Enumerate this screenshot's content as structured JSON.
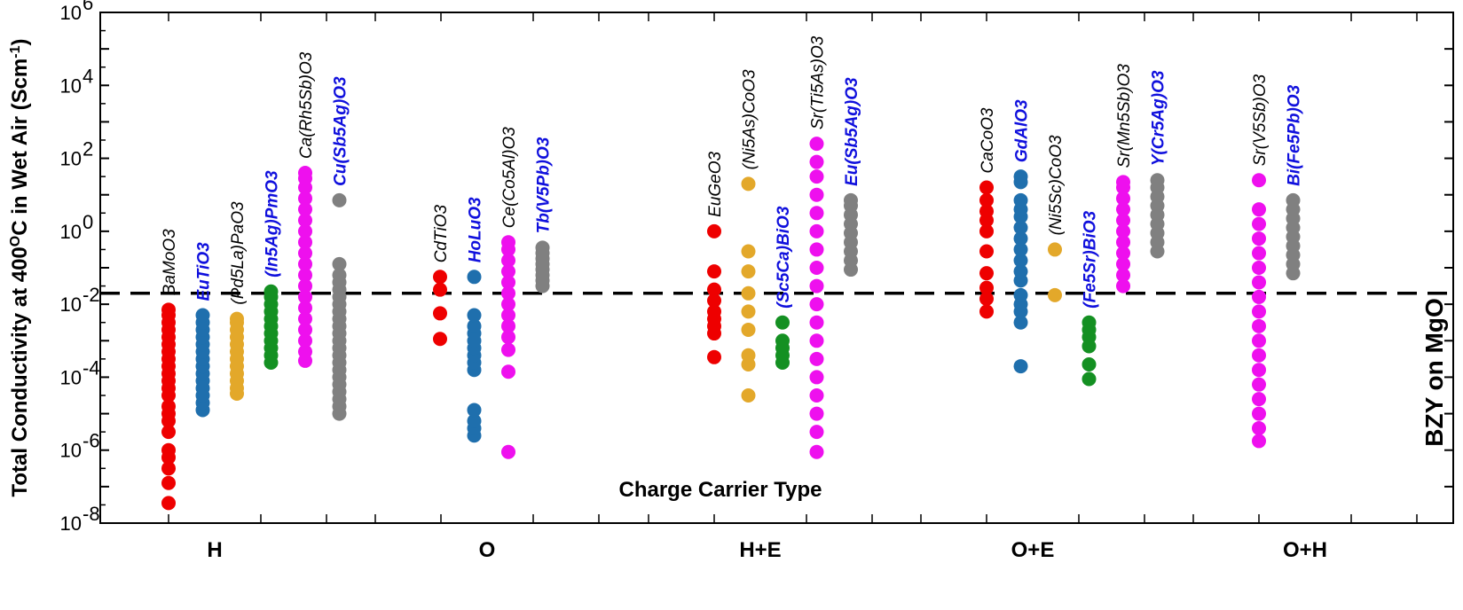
{
  "chart_data": {
    "type": "scatter",
    "xlabel": "Charge Carrier Type",
    "ylabel": "Total Conductivity at 400°C in Wet Air (Scm⁻¹)",
    "ylabel_parts": {
      "main": "Total Conductivity at 400",
      "sup": "O",
      "mid": "C in Wet Air (Scm",
      "sup2": "-1",
      "end": ")"
    },
    "yscale": "log",
    "ylim_exp": [
      -8,
      6
    ],
    "y_tick_exponents": [
      -8,
      -6,
      -4,
      -2,
      0,
      2,
      4,
      6
    ],
    "categories": [
      "H",
      "O",
      "H+E",
      "O+E",
      "O+H"
    ],
    "reference_line": {
      "value": 0.02,
      "style": "dashed",
      "label": "BZY on MgO"
    },
    "colors": {
      "red": "#ee0000",
      "blue": "#1f6fad",
      "gold": "#e3a82a",
      "green": "#149022",
      "magenta": "#ee10ee",
      "gray": "#808080",
      "label_black": "#000000",
      "label_blue": "#1010dd"
    },
    "series": [
      {
        "name": "BaMoO3",
        "category": "H",
        "slot": 0,
        "color": "red",
        "label_color": "label_black",
        "log_values": [
          -7.45,
          -6.9,
          -6.5,
          -6.2,
          -6.0,
          -5.5,
          -5.2,
          -5.0,
          -4.8,
          -4.5,
          -4.3,
          -4.1,
          -3.9,
          -3.7,
          -3.5,
          -3.3,
          -3.1,
          -2.9,
          -2.7,
          -2.5,
          -2.3,
          -2.15
        ]
      },
      {
        "name": "EuTiO3",
        "category": "H",
        "slot": 1,
        "color": "blue",
        "label_color": "label_blue",
        "log_values": [
          -4.9,
          -4.7,
          -4.5,
          -4.3,
          -4.1,
          -3.9,
          -3.7,
          -3.5,
          -3.3,
          -3.1,
          -2.9,
          -2.7,
          -2.5,
          -2.3
        ]
      },
      {
        "name": "(Pd5La)PaO3",
        "category": "H",
        "slot": 2,
        "color": "gold",
        "label_color": "label_black",
        "log_values": [
          -4.45,
          -4.3,
          -4.1,
          -3.9,
          -3.7,
          -3.5,
          -3.3,
          -3.1,
          -2.9,
          -2.7,
          -2.5,
          -2.4
        ]
      },
      {
        "name": "(In5Ag)PmO3",
        "category": "H",
        "slot": 3,
        "color": "green",
        "label_color": "label_blue",
        "log_values": [
          -3.6,
          -3.4,
          -3.2,
          -3.0,
          -2.8,
          -2.6,
          -2.4,
          -2.2,
          -2.0,
          -1.8,
          -1.65
        ]
      },
      {
        "name": "Ca(Rh5Sb)O3",
        "category": "H",
        "slot": 4,
        "color": "magenta",
        "label_color": "label_black",
        "log_values": [
          -3.55,
          -3.3,
          -3.0,
          -2.7,
          -2.4,
          -2.1,
          -1.8,
          -1.5,
          -1.2,
          -0.9,
          -0.6,
          -0.3,
          0.0,
          0.3,
          0.6,
          0.9,
          1.2,
          1.45,
          1.6
        ]
      },
      {
        "name": "Cu(Sb5Ag)O3",
        "category": "H",
        "slot": 5,
        "color": "gray",
        "label_color": "label_blue",
        "log_values": [
          -5.0,
          -4.8,
          -4.6,
          -4.4,
          -4.2,
          -4.0,
          -3.8,
          -3.6,
          -3.4,
          -3.2,
          -3.0,
          -2.8,
          -2.6,
          -2.4,
          -2.2,
          -2.0,
          -1.8,
          -1.6,
          -1.4,
          -1.2,
          -0.9,
          0.85
        ]
      },
      {
        "name": "CdTiO3",
        "category": "O",
        "slot": 0,
        "color": "red",
        "label_color": "label_black",
        "log_values": [
          -2.95,
          -2.25,
          -1.6,
          -1.25
        ]
      },
      {
        "name": "HoLuO3",
        "category": "O",
        "slot": 1,
        "color": "blue",
        "label_color": "label_blue",
        "log_values": [
          -5.6,
          -5.4,
          -5.2,
          -4.9,
          -3.8,
          -3.6,
          -3.4,
          -3.2,
          -3.0,
          -2.8,
          -2.6,
          -2.3,
          -1.25
        ]
      },
      {
        "name": "Ce(Co5Al)O3",
        "category": "O",
        "slot": 2,
        "color": "magenta",
        "label_color": "label_black",
        "log_values": [
          -6.05,
          -3.85,
          -3.25,
          -2.9,
          -2.6,
          -2.3,
          -2.0,
          -1.7,
          -1.4,
          -1.1,
          -0.8,
          -0.5,
          -0.3
        ]
      },
      {
        "name": "Tb(V5Pb)O3",
        "category": "O",
        "slot": 3,
        "color": "gray",
        "label_color": "label_blue",
        "log_values": [
          -1.5,
          -1.35,
          -1.2,
          -1.05,
          -0.9,
          -0.75,
          -0.6,
          -0.45
        ]
      },
      {
        "name": "EuGeO3",
        "category": "H+E",
        "slot": 0,
        "color": "red",
        "label_color": "label_black",
        "log_values": [
          -3.45,
          -2.8,
          -2.6,
          -2.4,
          -2.2,
          -1.9,
          -1.6,
          -1.1,
          0.0
        ]
      },
      {
        "name": "(Ni5As)CoO3",
        "category": "H+E",
        "slot": 1,
        "color": "gold",
        "label_color": "label_black",
        "log_values": [
          -4.5,
          -3.65,
          -3.4,
          -2.7,
          -2.2,
          -1.7,
          -1.1,
          -0.55,
          1.3
        ]
      },
      {
        "name": "(Sc5Ca)BiO3",
        "category": "H+E",
        "slot": 2,
        "color": "green",
        "label_color": "label_blue",
        "log_values": [
          -3.6,
          -3.4,
          -3.2,
          -3.0,
          -2.5
        ]
      },
      {
        "name": "Sr(Ti5As)O3",
        "category": "H+E",
        "slot": 3,
        "color": "magenta",
        "label_color": "label_black",
        "log_values": [
          -6.05,
          -5.5,
          -5.0,
          -4.5,
          -4.0,
          -3.5,
          -3.0,
          -2.5,
          -2.0,
          -1.5,
          -1.0,
          -0.5,
          0.0,
          0.5,
          1.0,
          1.5,
          1.9,
          2.4
        ]
      },
      {
        "name": "Eu(Sb5Ag)O3",
        "category": "H+E",
        "slot": 4,
        "color": "gray",
        "label_color": "label_blue",
        "log_values": [
          -1.05,
          -0.8,
          -0.55,
          -0.3,
          -0.05,
          0.2,
          0.45,
          0.7,
          0.85
        ]
      },
      {
        "name": "CaCoO3",
        "category": "O+E",
        "slot": 0,
        "color": "red",
        "label_color": "label_black",
        "log_values": [
          -2.2,
          -1.85,
          -1.55,
          -1.15,
          -0.55,
          0.0,
          0.3,
          0.55,
          0.85,
          1.2
        ]
      },
      {
        "name": "GdAlO3",
        "category": "O+E",
        "slot": 1,
        "color": "blue",
        "label_color": "label_blue",
        "log_values": [
          -3.7,
          -2.5,
          -2.2,
          -2.0,
          -1.75,
          -1.35,
          -1.1,
          -0.8,
          -0.5,
          -0.2,
          0.1,
          0.4,
          0.6,
          0.85,
          1.35,
          1.5
        ]
      },
      {
        "name": "(Ni5Sc)CoO3",
        "category": "O+E",
        "slot": 2,
        "color": "gold",
        "label_color": "label_black",
        "log_values": [
          -1.75,
          -0.5
        ]
      },
      {
        "name": "(Fe5Sr)BiO3",
        "category": "O+E",
        "slot": 3,
        "color": "green",
        "label_color": "label_blue",
        "log_values": [
          -4.05,
          -3.65,
          -3.15,
          -2.9,
          -2.7,
          -2.5
        ]
      },
      {
        "name": "Sr(Mn5Sb)O3",
        "category": "O+E",
        "slot": 4,
        "color": "magenta",
        "label_color": "label_black",
        "log_values": [
          -1.5,
          -1.2,
          -0.9,
          -0.6,
          -0.3,
          0.0,
          0.3,
          0.6,
          0.9,
          1.2,
          1.35
        ]
      },
      {
        "name": "Y(Cr5Ag)O3",
        "category": "O+E",
        "slot": 5,
        "color": "gray",
        "label_color": "label_blue",
        "log_values": [
          -0.55,
          -0.3,
          -0.05,
          0.2,
          0.45,
          0.7,
          0.95,
          1.2,
          1.4
        ]
      },
      {
        "name": "Sr(V5Sb)O3",
        "category": "O+H",
        "slot": 0,
        "color": "magenta",
        "label_color": "label_black",
        "log_values": [
          -5.75,
          -5.4,
          -5.0,
          -4.6,
          -4.2,
          -3.8,
          -3.4,
          -3.0,
          -2.6,
          -2.2,
          -1.8,
          -1.4,
          -1.0,
          -0.6,
          -0.2,
          0.2,
          0.6,
          1.4
        ]
      },
      {
        "name": "Bi(Fe5Pb)O3",
        "category": "O+H",
        "slot": 1,
        "color": "gray",
        "label_color": "label_blue",
        "log_values": [
          -1.15,
          -0.9,
          -0.65,
          -0.4,
          -0.15,
          0.1,
          0.35,
          0.6,
          0.85
        ]
      }
    ]
  }
}
